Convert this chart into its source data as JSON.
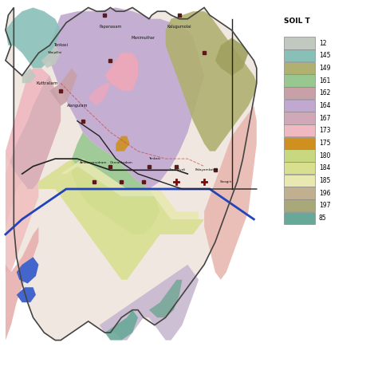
{
  "title": "SOIL T",
  "legend_items": [
    {
      "label": "12",
      "color": "#c0c8c0"
    },
    {
      "label": "145",
      "color": "#90c0b8"
    },
    {
      "label": "149",
      "color": "#b8b888"
    },
    {
      "label": "161",
      "color": "#98c890"
    },
    {
      "label": "162",
      "color": "#c8a0a0"
    },
    {
      "label": "164",
      "color": "#c0a8d0"
    },
    {
      "label": "167",
      "color": "#d0a8b8"
    },
    {
      "label": "173",
      "color": "#f0c0c8"
    },
    {
      "label": "175",
      "color": "#d8a020"
    },
    {
      "label": "180",
      "color": "#c8d880"
    },
    {
      "label": "184",
      "color": "#e0e090"
    },
    {
      "label": "185",
      "color": "#e8e8b8"
    },
    {
      "label": "196",
      "color": "#c0b090"
    },
    {
      "label": "197",
      "color": "#a8a878"
    },
    {
      "label": "85",
      "color": "#6090808"
    }
  ],
  "background_color": "#ffffff",
  "fig_width": 4.74,
  "fig_height": 4.74,
  "dpi": 100,
  "river_color": "#2020aa",
  "boundary_color": "#333333"
}
